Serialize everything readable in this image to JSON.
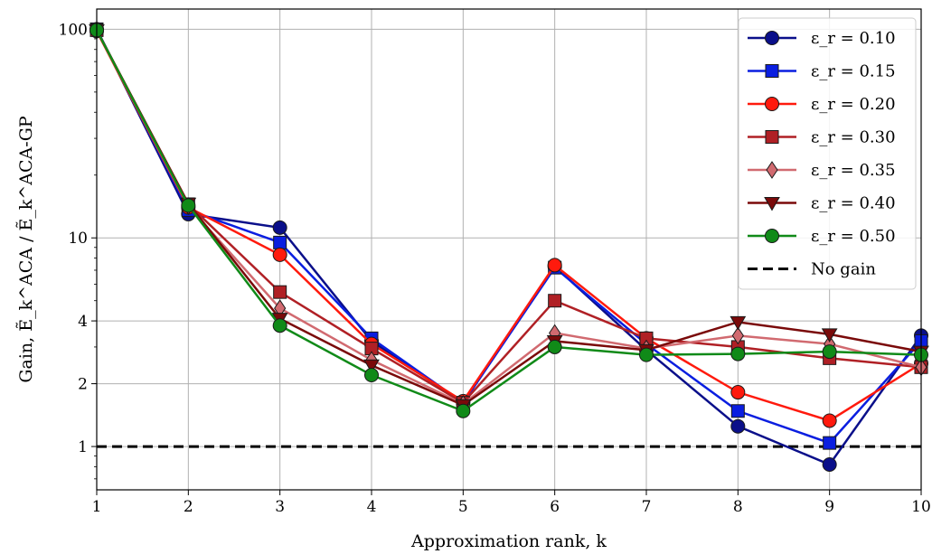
{
  "chart_data": {
    "type": "line",
    "xlabel": "Approximation rank, k",
    "ylabel": "Gain, Ẽ_k^ACA / Ẽ_k^ACA-GP",
    "x": [
      1,
      2,
      3,
      4,
      5,
      6,
      7,
      8,
      9,
      10
    ],
    "x_ticks": [
      "1",
      "2",
      "3",
      "4",
      "5",
      "6",
      "7",
      "8",
      "9",
      "10"
    ],
    "y_scale": "log",
    "ylim": [
      0.62,
      125
    ],
    "xlim": [
      1,
      10
    ],
    "y_ticks": [
      {
        "value": 1,
        "label": "1"
      },
      {
        "value": 2,
        "label": "2"
      },
      {
        "value": 4,
        "label": "4"
      },
      {
        "value": 10,
        "label": "10"
      },
      {
        "value": 100,
        "label": "100"
      }
    ],
    "grid": true,
    "legend_position": "upper right",
    "series": [
      {
        "name": "ε_r = 0.10",
        "color": "#0a0f8a",
        "marker": "circle",
        "values": [
          100,
          13.0,
          11.2,
          3.2,
          1.62,
          7.3,
          2.9,
          1.25,
          0.82,
          3.4
        ]
      },
      {
        "name": "ε_r = 0.15",
        "color": "#0a1ee0",
        "marker": "square",
        "values": [
          100,
          13.6,
          9.5,
          3.3,
          1.62,
          7.2,
          3.1,
          1.48,
          1.04,
          3.2
        ]
      },
      {
        "name": "ε_r = 0.20",
        "color": "#ff1a0d",
        "marker": "circle",
        "values": [
          98,
          14.0,
          8.3,
          3.1,
          1.65,
          7.4,
          3.3,
          1.82,
          1.33,
          2.5
        ]
      },
      {
        "name": "ε_r = 0.30",
        "color": "#b02025",
        "marker": "square",
        "values": [
          99,
          14.5,
          5.5,
          2.95,
          1.62,
          5.0,
          3.3,
          3.0,
          2.65,
          2.4
        ]
      },
      {
        "name": "ε_r = 0.35",
        "color": "#d16a70",
        "marker": "diamond",
        "values": [
          99,
          14.2,
          4.6,
          2.6,
          1.6,
          3.5,
          2.95,
          3.4,
          3.1,
          2.4
        ]
      },
      {
        "name": "ε_r = 0.40",
        "color": "#7a0a0a",
        "marker": "triangle-down",
        "values": [
          99,
          14.6,
          4.1,
          2.45,
          1.58,
          3.2,
          2.9,
          3.95,
          3.45,
          2.85
        ]
      },
      {
        "name": "ε_r = 0.50",
        "color": "#108a18",
        "marker": "circle",
        "values": [
          99,
          14.3,
          3.8,
          2.2,
          1.48,
          3.0,
          2.75,
          2.78,
          2.85,
          2.75
        ]
      }
    ],
    "reference_line": {
      "name": "No gain",
      "value": 1,
      "style": "dashed",
      "color": "#000000"
    }
  }
}
